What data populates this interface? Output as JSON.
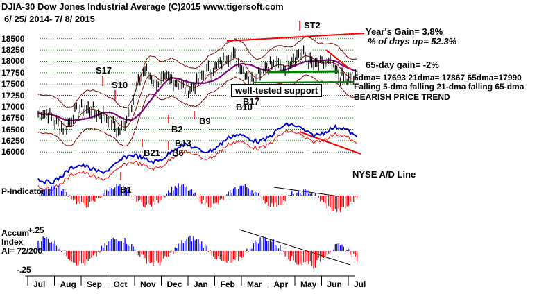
{
  "header": {
    "line1": "DJIA-30  Dow Jones Industrial Average   (C)2015 www.tigersoft.com",
    "line2": "6/ 25/ 2014-  7/ 8/ 2015"
  },
  "stats": {
    "years_gain": "Year's Gain= 3.8%",
    "days_up": "% of days up= 52.3%",
    "day65_gain": "65-day gain= -2%",
    "dma": "5dma= 17693 21dma= 17867 65dma=17990",
    "falling": "Falling 5-dma falling 21-dma falling 65-dma",
    "trend": "BEARISH PRICE TREND"
  },
  "annotations": {
    "support": "well-tested support",
    "ad_line": "NYSE A/D Line",
    "p_indicator": "P-Indicator",
    "accum_line1": "Accum",
    "accum_line2": "Index",
    "accum_ai": "AI= 72/200",
    "accum_top": "+.25",
    "accum_bottom": "-.25"
  },
  "signals": [
    {
      "label": "S17",
      "color": "#000000"
    },
    {
      "label": "S10",
      "color": "#000000"
    },
    {
      "label": "ST2",
      "color": "#000000"
    },
    {
      "label": "B1",
      "color": "#000000"
    },
    {
      "label": "B2",
      "color": "#000000"
    },
    {
      "label": "B9",
      "color": "#000000"
    },
    {
      "label": "B10",
      "color": "#000000"
    },
    {
      "label": "B17",
      "color": "#000000"
    },
    {
      "label": "B21",
      "color": "#000000"
    },
    {
      "label": "B13",
      "color": "#000000"
    },
    {
      "label": "B6",
      "color": "#000000"
    }
  ],
  "colors": {
    "price": "#000000",
    "ma21": "#800000",
    "ma65": "#800080",
    "band": "#800000",
    "ad_line": "#0000cc",
    "ad_ma": "#ff0000",
    "pos_bar": "#0000ff",
    "neg_bar": "#ff0000",
    "trendline": "#ff0000",
    "support": "#008000",
    "grid": "#008000"
  },
  "chart_data": {
    "type": "line",
    "title": "DJIA-30  Dow Jones Industrial Average",
    "y_ticks": [
      "18500",
      "18250",
      "18000",
      "17750",
      "17500",
      "17250",
      "17000",
      "16750",
      "16500",
      "16250",
      "16000"
    ],
    "ylim": [
      15850,
      18650
    ],
    "months": [
      "Jul",
      "Aug",
      "Sep",
      "Oct",
      "Nov",
      "Dec",
      "Jan",
      "Feb",
      "Mar",
      "Apr",
      "May",
      "Jun",
      "Jul"
    ],
    "close_monthly": [
      {
        "month": "Jul",
        "value": 16850
      },
      {
        "month": "Aug",
        "value": 16600
      },
      {
        "month": "Sep",
        "value": 17050
      },
      {
        "month": "Oct",
        "value": 16450
      },
      {
        "month": "Nov",
        "value": 17750
      },
      {
        "month": "Dec",
        "value": 17500
      },
      {
        "month": "Jan",
        "value": 17500
      },
      {
        "month": "Feb",
        "value": 18150
      },
      {
        "month": "Mar",
        "value": 17700
      },
      {
        "month": "Apr",
        "value": 17950
      },
      {
        "month": "May",
        "value": 18100
      },
      {
        "month": "Jun",
        "value": 17800
      },
      {
        "month": "Jul",
        "value": 17550
      }
    ],
    "series": [
      {
        "name": "NYSE A/D Line",
        "trend": "falling"
      },
      {
        "name": "P-Indicator"
      },
      {
        "name": "Accum Index",
        "ai": "72/200"
      }
    ]
  }
}
